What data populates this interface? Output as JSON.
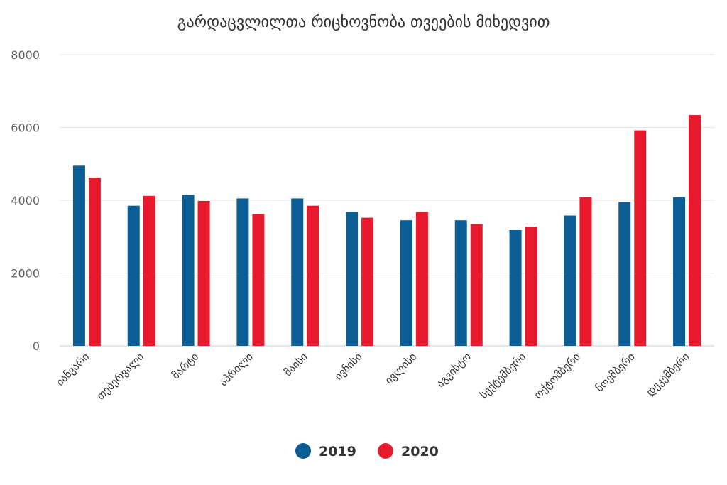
{
  "chart_data": {
    "type": "bar",
    "title": "გარდაცვლილთა რიცხოვნობა თვეების მიხედვით",
    "xlabel": "",
    "ylabel": "",
    "categories": [
      "იანვარი",
      "თებერვალი",
      "მარტი",
      "აპრილი",
      "მაისი",
      "ივნისი",
      "ივლისი",
      "აგვისტო",
      "სექტემბერი",
      "ოქტომბერი",
      "ნოემბერი",
      "დეკემბერი"
    ],
    "series": [
      {
        "name": "2019",
        "color": "#0b5e95",
        "values": [
          4950,
          3850,
          4150,
          4050,
          4050,
          3680,
          3450,
          3450,
          3180,
          3580,
          3950,
          4080
        ]
      },
      {
        "name": "2020",
        "color": "#e8192c",
        "values": [
          4620,
          4120,
          3980,
          3620,
          3850,
          3520,
          3680,
          3350,
          3280,
          4080,
          5920,
          6340
        ]
      }
    ],
    "ylim": [
      0,
      8000
    ],
    "yticks": [
      0,
      2000,
      4000,
      6000,
      8000
    ],
    "grid": true,
    "legend_position": "bottom-center"
  }
}
